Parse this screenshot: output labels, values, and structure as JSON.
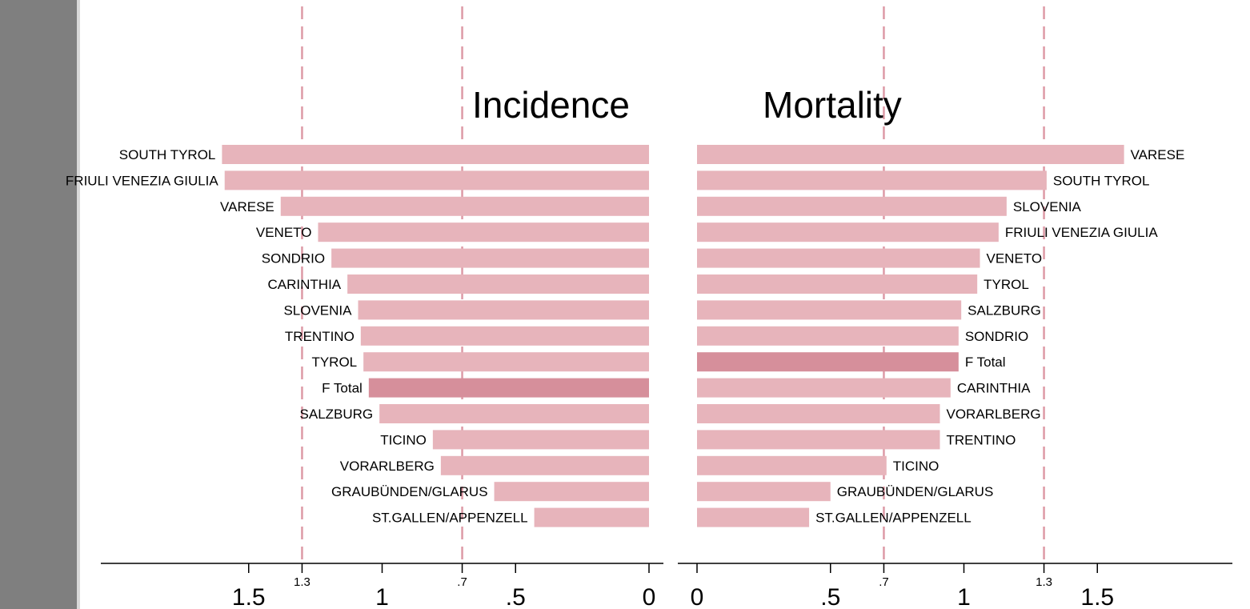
{
  "chart_data": [
    {
      "type": "bar",
      "orientation": "horizontal",
      "direction": "reversed",
      "title": "Incidence",
      "categories": [
        "SOUTH TYROL",
        "FRIULI VENEZIA GIULIA",
        "VARESE",
        "VENETO",
        "SONDRIO",
        "CARINTHIA",
        "SLOVENIA",
        "TRENTINO",
        "TYROL",
        "F Total",
        "SALZBURG",
        "TICINO",
        "VORARLBERG",
        "GRAUBÜNDEN/GLARUS",
        "ST.GALLEN/APPENZELL"
      ],
      "values": [
        1.6,
        1.59,
        1.38,
        1.24,
        1.19,
        1.13,
        1.09,
        1.08,
        1.07,
        1.05,
        1.01,
        0.81,
        0.78,
        0.58,
        0.43
      ],
      "highlight": "F Total",
      "xlim": [
        0,
        2.07
      ],
      "ticks": [
        {
          "value": 1.5,
          "label": "1.5",
          "size": "large"
        },
        {
          "value": 1.3,
          "label": "1.3",
          "size": "small"
        },
        {
          "value": 1,
          "label": "1",
          "size": "large"
        },
        {
          "value": 0.7,
          "label": ".7",
          "size": "small"
        },
        {
          "value": 0.5,
          "label": ".5",
          "size": "large"
        },
        {
          "value": 0,
          "label": "0",
          "size": "large"
        }
      ],
      "reference_lines": [
        1.3,
        0.7
      ]
    },
    {
      "type": "bar",
      "orientation": "horizontal",
      "direction": "normal",
      "title": "Mortality",
      "categories": [
        "VARESE",
        "SOUTH TYROL",
        "SLOVENIA",
        "FRIULI VENEZIA GIULIA",
        "VENETO",
        "TYROL",
        "SALZBURG",
        "SONDRIO",
        "F Total",
        "CARINTHIA",
        "VORARLBERG",
        "TRENTINO",
        "TICINO",
        "GRAUBÜNDEN/GLARUS",
        "ST.GALLEN/APPENZELL"
      ],
      "values": [
        1.6,
        1.31,
        1.16,
        1.13,
        1.06,
        1.05,
        0.99,
        0.98,
        0.98,
        0.95,
        0.91,
        0.91,
        0.71,
        0.5,
        0.42
      ],
      "highlight": "F Total",
      "xlim": [
        0,
        2.07
      ],
      "ticks": [
        {
          "value": 0,
          "label": "0",
          "size": "large"
        },
        {
          "value": 0.5,
          "label": ".5",
          "size": "large"
        },
        {
          "value": 0.7,
          "label": ".7",
          "size": "small"
        },
        {
          "value": 1,
          "label": "1",
          "size": "large"
        },
        {
          "value": 1.3,
          "label": "1.3",
          "size": "small"
        },
        {
          "value": 1.5,
          "label": "1.5",
          "size": "large"
        }
      ],
      "reference_lines": [
        0.7,
        1.3
      ]
    }
  ],
  "colors": {
    "bar": "#e7b4bb",
    "highlight_bar": "#d68f9b",
    "reference_line": "#dd9aa6",
    "axis": "#000000",
    "sidebar": "#7f7f7f"
  }
}
